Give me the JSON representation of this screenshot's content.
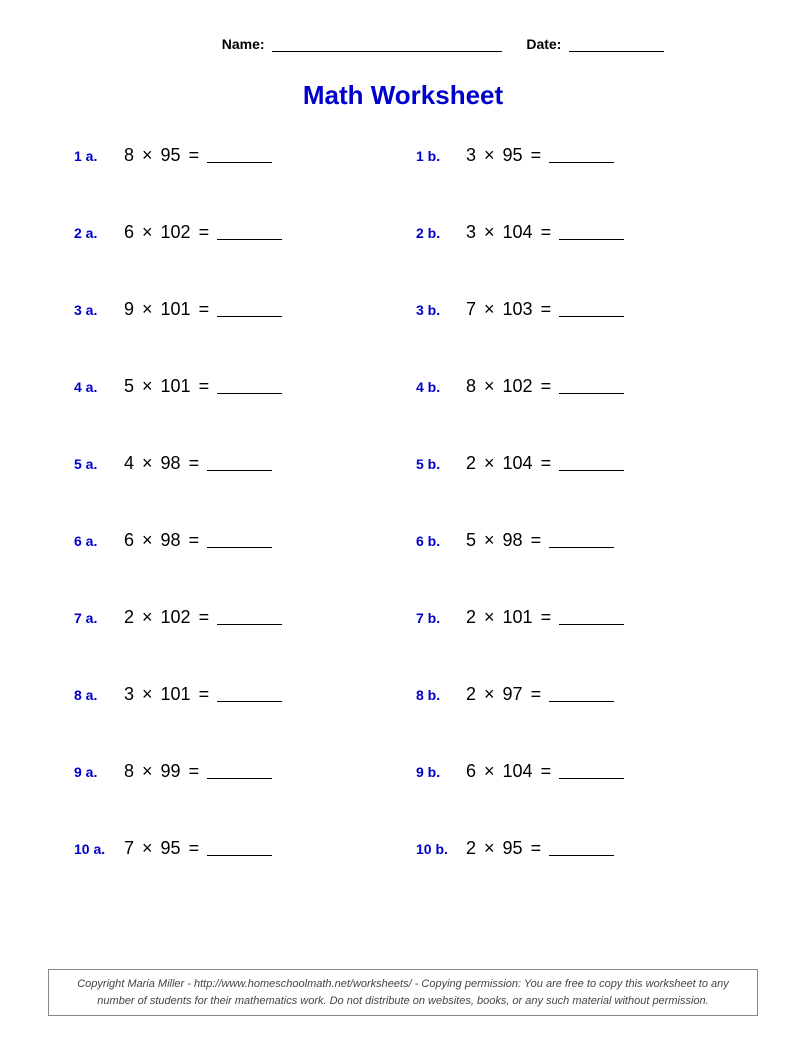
{
  "header": {
    "name_label": "Name:",
    "date_label": "Date:"
  },
  "title": "Math Worksheet",
  "label_color": "#0000cc",
  "text_color": "#000000",
  "operator": "×",
  "equals": "=",
  "problems": [
    {
      "num": "1 a.",
      "a": "8",
      "b": "95"
    },
    {
      "num": "1 b.",
      "a": "3",
      "b": "95"
    },
    {
      "num": "2 a.",
      "a": "6",
      "b": "102"
    },
    {
      "num": "2 b.",
      "a": "3",
      "b": "104"
    },
    {
      "num": "3 a.",
      "a": "9",
      "b": "101"
    },
    {
      "num": "3 b.",
      "a": "7",
      "b": "103"
    },
    {
      "num": "4 a.",
      "a": "5",
      "b": "101"
    },
    {
      "num": "4 b.",
      "a": "8",
      "b": "102"
    },
    {
      "num": "5 a.",
      "a": "4",
      "b": "98"
    },
    {
      "num": "5 b.",
      "a": "2",
      "b": "104"
    },
    {
      "num": "6 a.",
      "a": "6",
      "b": "98"
    },
    {
      "num": "6 b.",
      "a": "5",
      "b": "98"
    },
    {
      "num": "7 a.",
      "a": "2",
      "b": "102"
    },
    {
      "num": "7 b.",
      "a": "2",
      "b": "101"
    },
    {
      "num": "8 a.",
      "a": "3",
      "b": "101"
    },
    {
      "num": "8 b.",
      "a": "2",
      "b": "97"
    },
    {
      "num": "9 a.",
      "a": "8",
      "b": "99"
    },
    {
      "num": "9 b.",
      "a": "6",
      "b": "104"
    },
    {
      "num": "10 a.",
      "a": "7",
      "b": "95"
    },
    {
      "num": "10 b.",
      "a": "2",
      "b": "95"
    }
  ],
  "footer": "Copyright Maria Miller - http://www.homeschoolmath.net/worksheets/ - Copying permission: You are free to copy this worksheet to any number of students for their mathematics work. Do not distribute on websites, books, or any such material without permission."
}
